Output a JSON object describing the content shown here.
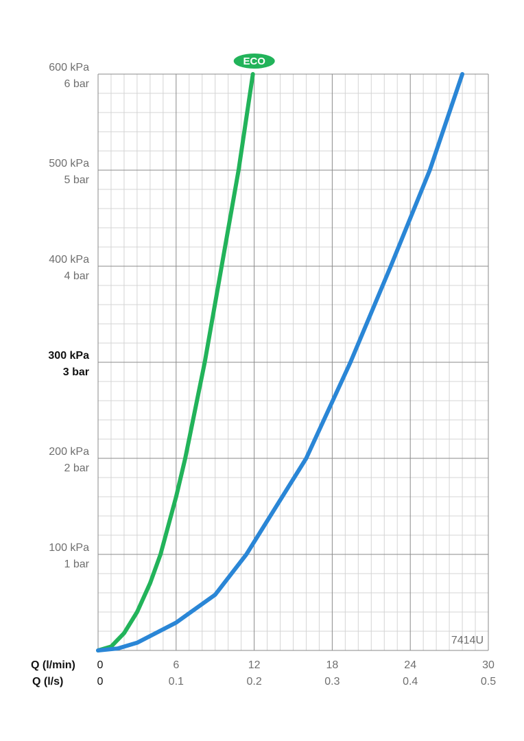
{
  "chart_data": {
    "type": "line",
    "model": "7414U",
    "x_label": "Q (l/min)",
    "x2_label": "Q (l/s)",
    "xlim": [
      0,
      30
    ],
    "xticks": [
      0,
      6,
      12,
      18,
      24,
      30
    ],
    "x2ticks": [
      {
        "value": 0,
        "label": "0"
      },
      {
        "value": 6,
        "label": "0.1"
      },
      {
        "value": 12,
        "label": "0.2"
      },
      {
        "value": 18,
        "label": "0.3"
      },
      {
        "value": 24,
        "label": "0.4"
      },
      {
        "value": 30,
        "label": "0.5"
      }
    ],
    "ylim": [
      0,
      600
    ],
    "yticks": [
      {
        "value": 100,
        "label": "100 kPa"
      },
      {
        "value": 200,
        "label": "200 kPa"
      },
      {
        "value": 300,
        "label": "300 kPa"
      },
      {
        "value": 400,
        "label": "400 kPa"
      },
      {
        "value": 500,
        "label": "500 kPa"
      },
      {
        "value": 600,
        "label": "600 kPa"
      }
    ],
    "yticks_bar": [
      {
        "value": 100,
        "label": "1 bar"
      },
      {
        "value": 200,
        "label": "2 bar"
      },
      {
        "value": 300,
        "label": "3 bar"
      },
      {
        "value": 400,
        "label": "4 bar"
      },
      {
        "value": 500,
        "label": "5 bar"
      },
      {
        "value": 600,
        "label": "6 bar"
      }
    ],
    "highlight_ytick": 300,
    "grid": true,
    "series": [
      {
        "name": "ECO",
        "color": "#22b35a",
        "x": [
          0,
          1,
          2,
          3,
          4,
          4.8,
          6,
          6.7,
          8.2,
          9.5,
          10.8,
          11.9
        ],
        "values": [
          0,
          4,
          18,
          40,
          70,
          100,
          160,
          200,
          300,
          400,
          500,
          600
        ]
      },
      {
        "color": "#2a86d6",
        "x": [
          0,
          1.5,
          3,
          6,
          9,
          11.4,
          16,
          19.4,
          22.5,
          25.5,
          28
        ],
        "values": [
          0,
          2,
          8,
          29,
          58,
          100,
          200,
          300,
          400,
          500,
          600
        ]
      }
    ]
  }
}
